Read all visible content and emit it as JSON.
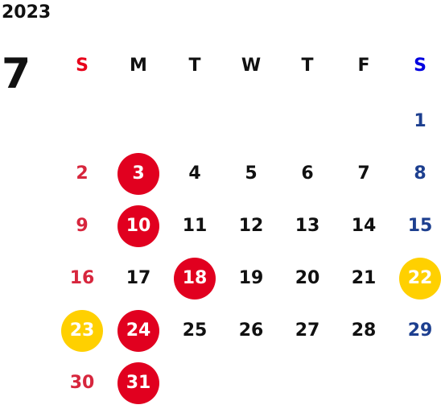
{
  "year": "2023",
  "month": "7",
  "weekdays": [
    "S",
    "M",
    "T",
    "W",
    "T",
    "F",
    "S"
  ],
  "colors": {
    "sunday_text": "#d7263d",
    "saturday_text": "#1d3f8f",
    "red_highlight": "#e1001f",
    "yellow_highlight": "#ffd000"
  },
  "weeks": [
    [
      null,
      null,
      null,
      null,
      null,
      null,
      {
        "day": "1",
        "mark": null
      }
    ],
    [
      {
        "day": "2",
        "mark": null
      },
      {
        "day": "3",
        "mark": "red"
      },
      {
        "day": "4",
        "mark": null
      },
      {
        "day": "5",
        "mark": null
      },
      {
        "day": "6",
        "mark": null
      },
      {
        "day": "7",
        "mark": null
      },
      {
        "day": "8",
        "mark": null
      }
    ],
    [
      {
        "day": "9",
        "mark": null
      },
      {
        "day": "10",
        "mark": "red"
      },
      {
        "day": "11",
        "mark": null
      },
      {
        "day": "12",
        "mark": null
      },
      {
        "day": "13",
        "mark": null
      },
      {
        "day": "14",
        "mark": null
      },
      {
        "day": "15",
        "mark": null
      }
    ],
    [
      {
        "day": "16",
        "mark": null
      },
      {
        "day": "17",
        "mark": null
      },
      {
        "day": "18",
        "mark": "red"
      },
      {
        "day": "19",
        "mark": null
      },
      {
        "day": "20",
        "mark": null
      },
      {
        "day": "21",
        "mark": null
      },
      {
        "day": "22",
        "mark": "yellow"
      }
    ],
    [
      {
        "day": "23",
        "mark": "yellow"
      },
      {
        "day": "24",
        "mark": "red"
      },
      {
        "day": "25",
        "mark": null
      },
      {
        "day": "26",
        "mark": null
      },
      {
        "day": "27",
        "mark": null
      },
      {
        "day": "28",
        "mark": null
      },
      {
        "day": "29",
        "mark": null
      }
    ],
    [
      {
        "day": "30",
        "mark": null
      },
      {
        "day": "31",
        "mark": "red"
      },
      null,
      null,
      null,
      null,
      null
    ]
  ]
}
